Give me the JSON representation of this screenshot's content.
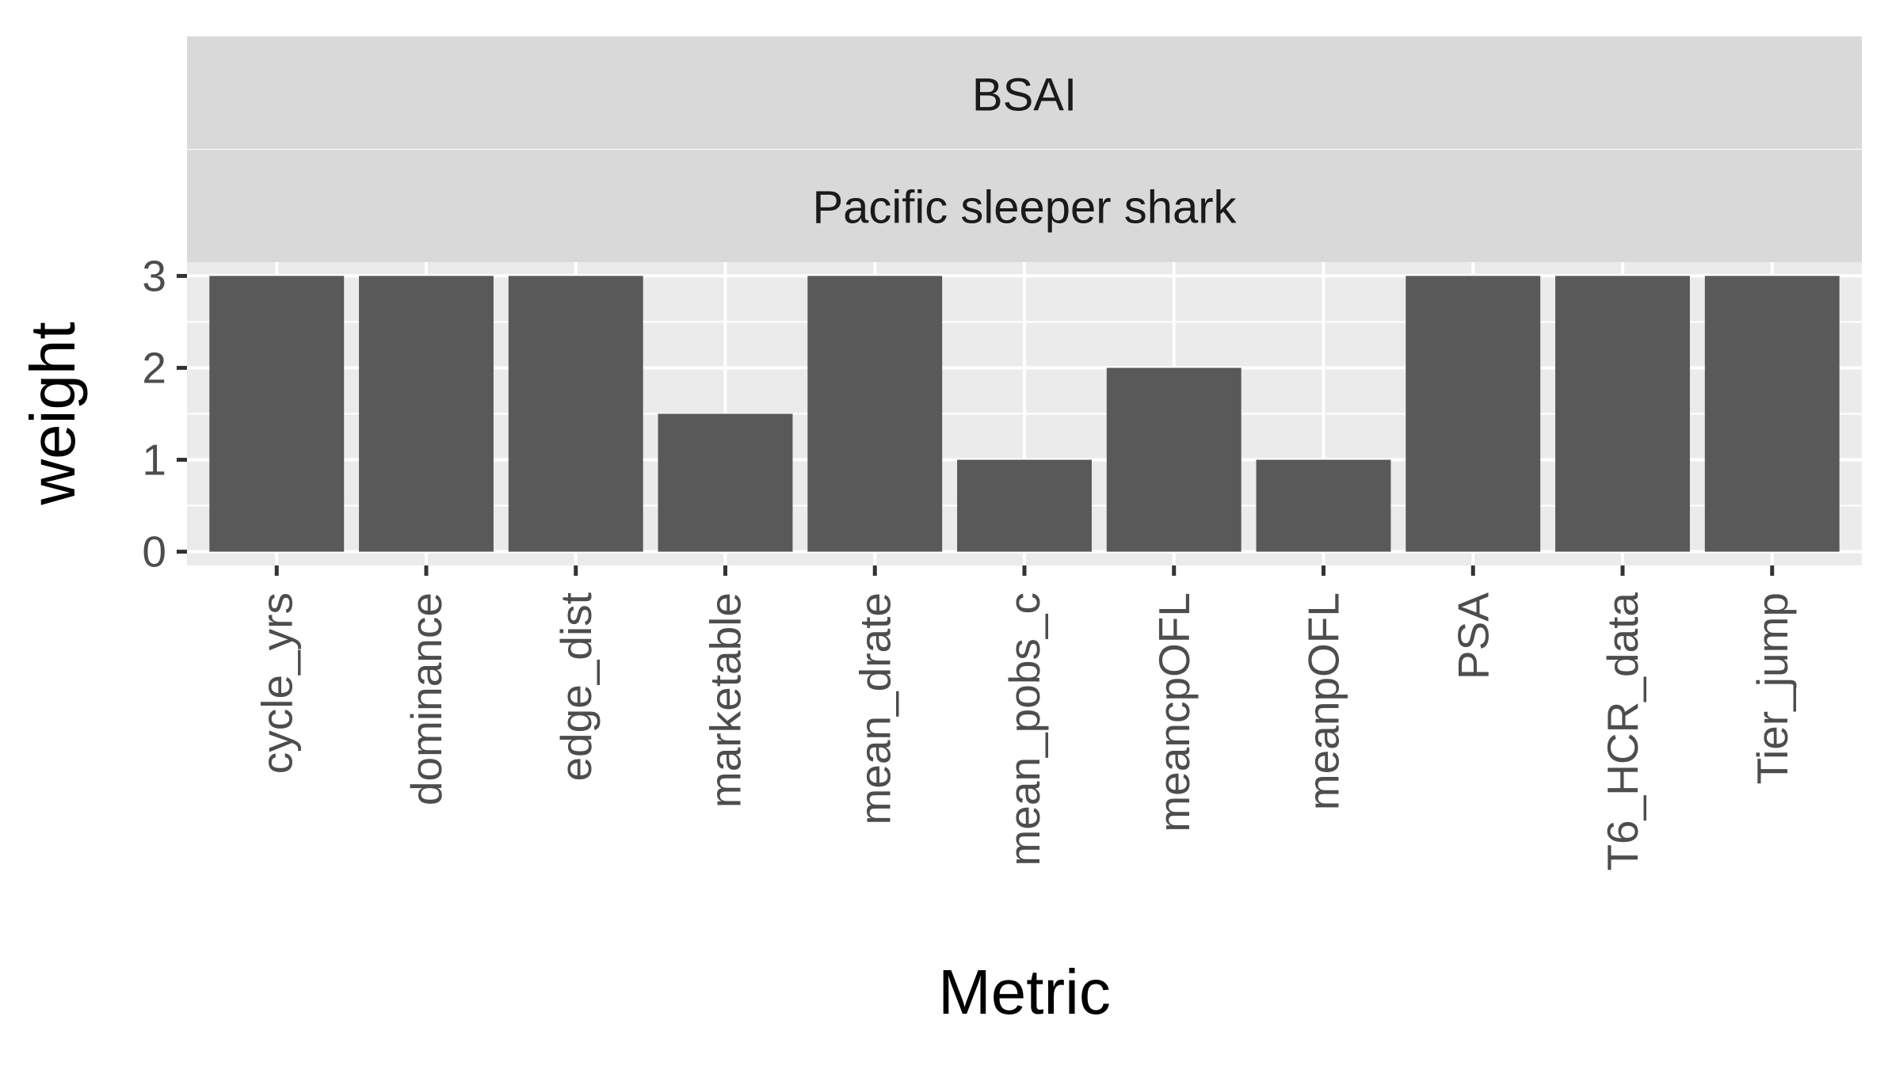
{
  "chart_data": {
    "type": "bar",
    "facet_strips": [
      "BSAI",
      "Pacific sleeper shark"
    ],
    "categories": [
      "cycle_yrs",
      "dominance",
      "edge_dist",
      "marketable",
      "mean_drate",
      "mean_pobs_c",
      "meancpOFL",
      "meanpOFL",
      "PSA",
      "T6_HCR_data",
      "Tier_jump"
    ],
    "values": [
      3,
      3,
      3,
      1.5,
      3,
      1,
      2,
      1,
      3,
      3,
      3
    ],
    "xlabel": "Metric",
    "ylabel": "weight",
    "ylim": [
      -0.15,
      3.15
    ],
    "yticks": [
      0,
      1,
      2,
      3
    ],
    "grid": true,
    "colors": {
      "bar": "#595959",
      "panel_bg": "#ebebeb",
      "strip_bg": "#d9d9d9",
      "grid": "#ffffff"
    }
  }
}
